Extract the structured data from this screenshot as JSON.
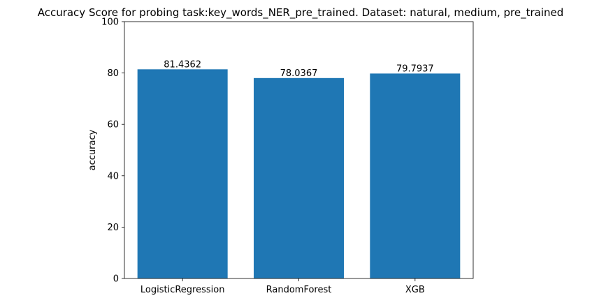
{
  "chart_data": {
    "type": "bar",
    "title": "Accuracy Score for probing task:key_words_NER_pre_trained. Dataset: natural, medium, pre_trained",
    "xlabel": "",
    "ylabel": "accuracy",
    "categories": [
      "LogisticRegression",
      "RandomForest",
      "XGB"
    ],
    "values": [
      81.4362,
      78.0367,
      79.7937
    ],
    "data_labels": [
      "81.4362",
      "78.0367",
      "79.7937"
    ],
    "ylim": [
      0,
      100
    ],
    "yticks": [
      0,
      20,
      40,
      60,
      80,
      100
    ],
    "grid": false,
    "legend": "none",
    "bar_color": "#1f77b4"
  }
}
